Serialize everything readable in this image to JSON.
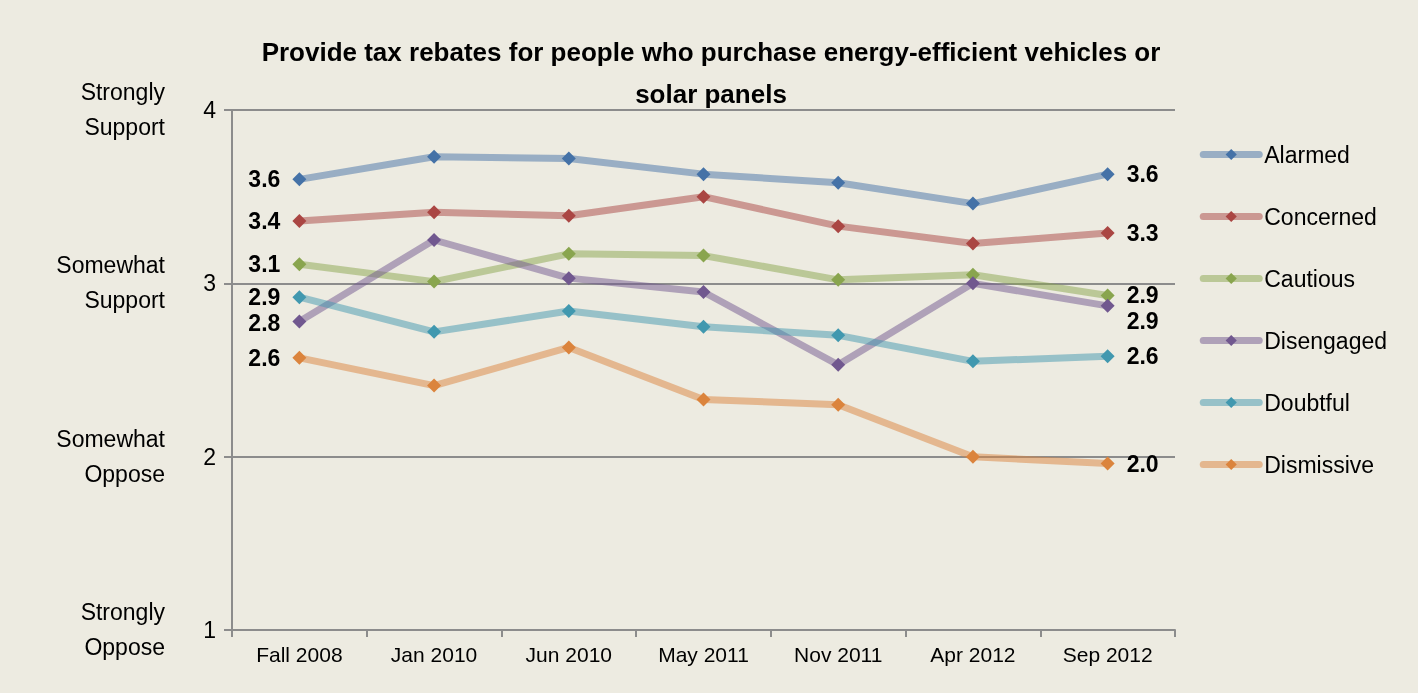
{
  "chart_data": {
    "type": "line",
    "title": "Provide tax rebates for people who purchase energy-efficient vehicles or solar panels",
    "categories": [
      "Fall 2008",
      "Jan 2010",
      "Jun 2010",
      "May 2011",
      "Nov 2011",
      "Apr 2012",
      "Sep 2012"
    ],
    "series": [
      {
        "name": "Alarmed",
        "color": "#4572a7",
        "values": [
          3.6,
          3.73,
          3.72,
          3.63,
          3.58,
          3.46,
          3.63
        ],
        "value_labels": [
          "3.6",
          null,
          null,
          null,
          null,
          null,
          "3.6"
        ]
      },
      {
        "name": "Concerned",
        "color": "#aa4643",
        "values": [
          3.36,
          3.41,
          3.39,
          3.5,
          3.33,
          3.23,
          3.29
        ],
        "value_labels": [
          "3.4",
          null,
          null,
          null,
          null,
          null,
          "3.3"
        ]
      },
      {
        "name": "Cautious",
        "color": "#89a54e",
        "values": [
          3.11,
          3.01,
          3.17,
          3.16,
          3.02,
          3.05,
          2.93
        ],
        "value_labels": [
          "3.1",
          null,
          null,
          null,
          null,
          null,
          "2.9"
        ]
      },
      {
        "name": "Disengaged",
        "color": "#71588f",
        "values": [
          2.78,
          3.25,
          3.03,
          2.95,
          2.53,
          3.0,
          2.87
        ],
        "value_labels": [
          "2.8",
          null,
          null,
          null,
          null,
          null,
          "2.9"
        ]
      },
      {
        "name": "Doubtful",
        "color": "#4198af",
        "values": [
          2.92,
          2.72,
          2.84,
          2.75,
          2.7,
          2.55,
          2.58
        ],
        "value_labels": [
          "2.9",
          null,
          null,
          null,
          null,
          null,
          "2.6"
        ]
      },
      {
        "name": "Dismissive",
        "color": "#db843d",
        "values": [
          2.57,
          2.41,
          2.63,
          2.33,
          2.3,
          2.0,
          1.96
        ],
        "value_labels": [
          "2.6",
          null,
          null,
          null,
          null,
          null,
          "2.0"
        ]
      }
    ],
    "ylim": [
      1,
      4
    ],
    "yticks": [
      1,
      2,
      3,
      4
    ],
    "grid": "y",
    "legend": "right",
    "marker": "diamond",
    "line_style": "solid",
    "annotations": [
      "Strongly Support",
      "Somewhat Support",
      "Somewhat Oppose",
      "Strongly Oppose"
    ]
  }
}
